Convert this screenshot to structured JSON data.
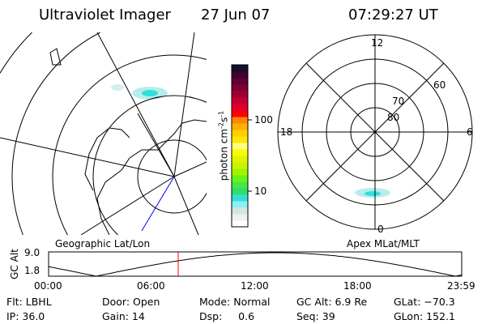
{
  "header": {
    "instrument": "Ultraviolet Imager",
    "date": "27 Jun 07",
    "time": "07:29:27 UT"
  },
  "colorbar": {
    "label": "photon cm",
    "label_sup1": "-2",
    "label_s": "s",
    "label_sup2": "-1",
    "ticks": [
      "100",
      "10"
    ],
    "colors": [
      "#ffffff",
      "#e8f4ee",
      "#d4e4e4",
      "#90eef2",
      "#30e0d8",
      "#30dc70",
      "#48e840",
      "#68f418",
      "#a0f400",
      "#c8f400",
      "#e4f400",
      "#f8fc00",
      "#fefe80",
      "#ffe800",
      "#ffd000",
      "#ffb000",
      "#ff8800",
      "#ff0000",
      "#e00030",
      "#c40030",
      "#a00030",
      "#800030",
      "#600030",
      "#400030",
      "#101030"
    ]
  },
  "left_panel": {
    "label": "Geographic Lat/Lon"
  },
  "right_panel": {
    "label": "Apex MLat/MLT",
    "mlt_labels": [
      "12",
      "6",
      "0",
      "18"
    ],
    "lat_labels": [
      "80",
      "70",
      "60"
    ]
  },
  "timeline": {
    "ylabel": "GC Alt",
    "yticks": [
      "9.0",
      "1.8"
    ],
    "xticks": [
      "00:00",
      "06:00",
      "12:00",
      "18:00",
      "23:59"
    ],
    "current_time_marker_color": "#ff0000"
  },
  "info": {
    "flt": "Flt: LBHL",
    "ip": "IP: 36.0",
    "door": "Door: Open",
    "gain": "Gain: 14",
    "mode": "Mode: Normal",
    "dsp": "Dsp:     0.6",
    "gcalt": "GC Alt: 6.9 Re",
    "seq": "Seq: 39",
    "glat": "GLat: −70.3",
    "glon": "GLon: 152.1"
  }
}
